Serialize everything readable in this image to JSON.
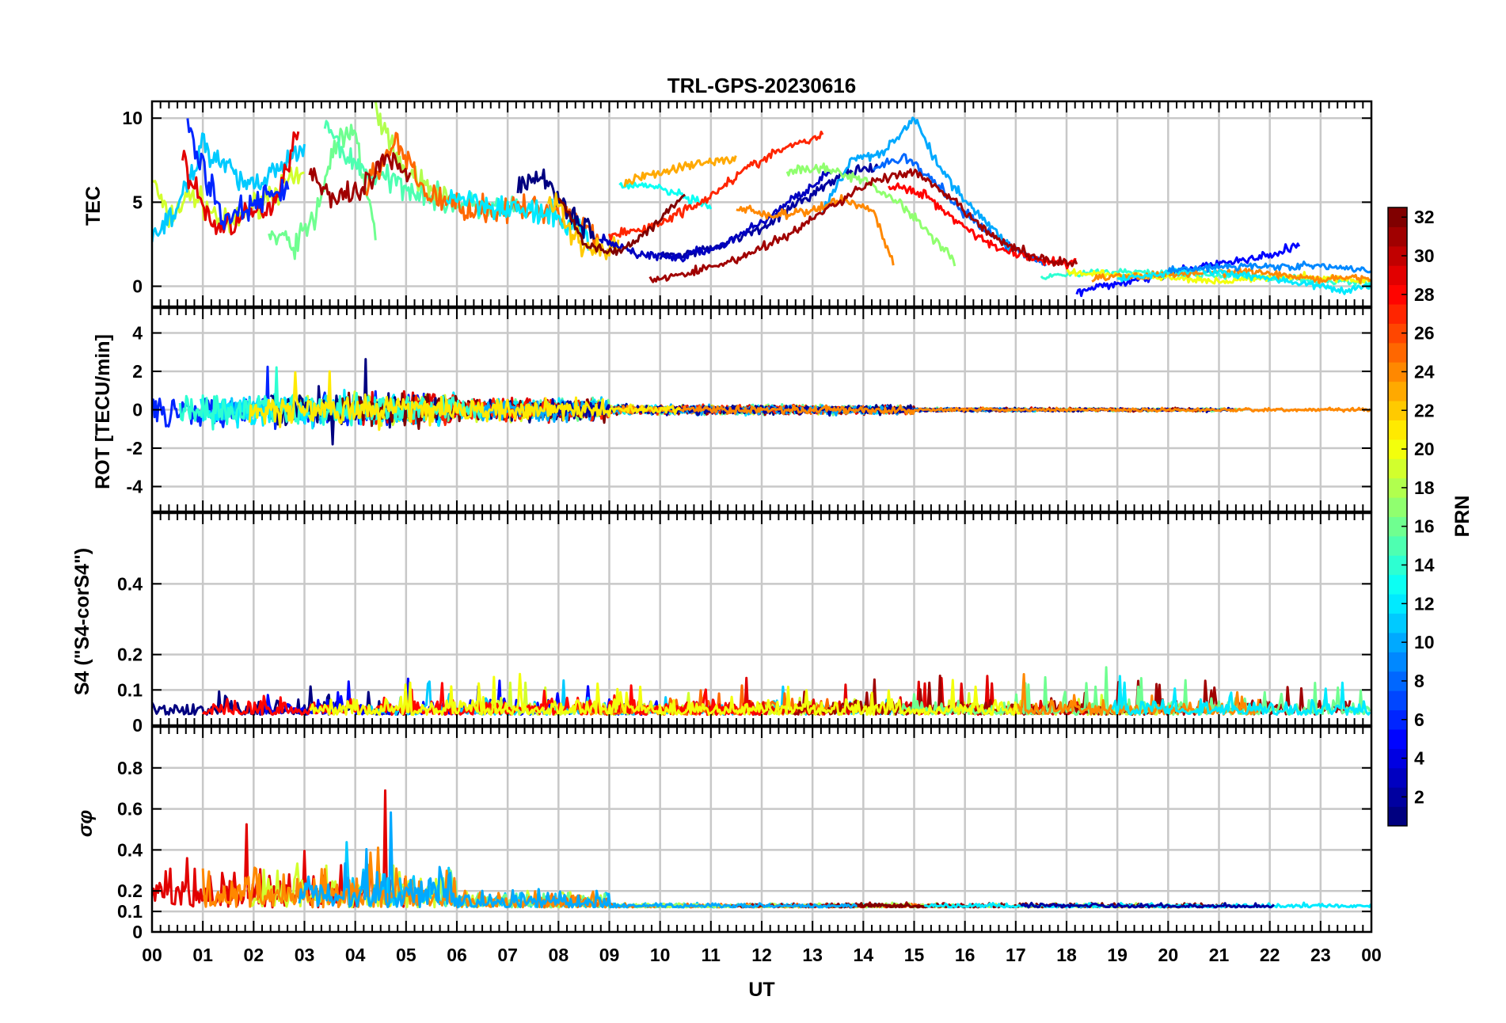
{
  "title": "TRL-GPS-20230616",
  "xlabel": "UT",
  "x_ticks": [
    "00",
    "01",
    "02",
    "03",
    "04",
    "05",
    "06",
    "07",
    "08",
    "09",
    "10",
    "11",
    "12",
    "13",
    "14",
    "15",
    "16",
    "17",
    "18",
    "19",
    "20",
    "21",
    "22",
    "23",
    "00"
  ],
  "colorbar": {
    "label": "PRN",
    "colormap": "jet",
    "range": [
      1,
      32
    ],
    "ticks": [
      "2",
      "4",
      "6",
      "8",
      "10",
      "12",
      "14",
      "16",
      "18",
      "20",
      "22",
      "24",
      "26",
      "28",
      "30",
      "32"
    ]
  },
  "chart_data": [
    {
      "type": "line",
      "panel": "tec",
      "ylabel": "TEC",
      "xlim": [
        0,
        24
      ],
      "ylim": [
        -1.2,
        11
      ],
      "y_ticks": [
        "0",
        "5",
        "10"
      ],
      "grid": true,
      "series": [
        {
          "prn": 2,
          "x": [
            10.0,
            11.0,
            12.0,
            13.0,
            13.7,
            14.3
          ],
          "y": [
            1.8,
            2.2,
            3.5,
            5.5,
            6.8,
            7.0
          ]
        },
        {
          "prn": 3,
          "x": [
            8.8,
            9.6,
            10.4,
            11.2,
            12.1,
            12.8,
            13.4
          ],
          "y": [
            2.8,
            1.9,
            1.7,
            2.4,
            4.0,
            5.6,
            6.9
          ]
        },
        {
          "prn": 5,
          "x": [
            18.2,
            19.2,
            20.4,
            21.2,
            22.0,
            22.6
          ],
          "y": [
            -0.4,
            0.3,
            1.0,
            1.4,
            1.8,
            2.5
          ]
        },
        {
          "prn": 8,
          "x": [
            14.2,
            14.8,
            15.4,
            16.0,
            16.8,
            17.6
          ],
          "y": [
            7.0,
            7.7,
            6.2,
            4.3,
            2.5,
            1.3
          ]
        },
        {
          "prn": 10,
          "x": [
            13.2,
            13.8,
            14.4,
            15.0,
            15.5,
            16.2,
            17.0
          ],
          "y": [
            4.5,
            7.6,
            8.0,
            10.0,
            7.0,
            4.5,
            2.0
          ]
        },
        {
          "prn": 13,
          "x": [
            9.2,
            9.8,
            10.5,
            11.0
          ],
          "y": [
            6.0,
            6.0,
            5.3,
            4.6
          ]
        },
        {
          "prn": 17,
          "x": [
            12.5,
            13.2,
            14.0,
            14.7,
            15.2,
            15.8
          ],
          "y": [
            6.8,
            7.0,
            6.3,
            5.0,
            3.5,
            1.5
          ]
        },
        {
          "prn": 23,
          "x": [
            9.3,
            10.0,
            10.8,
            11.5
          ],
          "y": [
            6.2,
            6.8,
            7.3,
            7.6
          ]
        },
        {
          "prn": 24,
          "x": [
            11.5,
            12.2,
            12.9,
            13.6,
            14.2,
            14.6
          ],
          "y": [
            4.7,
            4.2,
            4.4,
            5.2,
            4.5,
            1.2
          ]
        },
        {
          "prn": 27,
          "x": [
            9.0,
            9.8,
            10.8,
            11.7,
            12.5,
            13.2
          ],
          "y": [
            3.0,
            3.5,
            5.0,
            7.0,
            8.3,
            8.9
          ]
        },
        {
          "prn": 28,
          "x": [
            14.5,
            15.2,
            16.0,
            16.7,
            17.6,
            18.2
          ],
          "y": [
            6.0,
            5.5,
            3.5,
            2.2,
            1.5,
            1.3
          ]
        },
        {
          "prn": 31,
          "x": [
            9.8,
            10.6,
            11.5,
            12.5,
            13.4,
            14.2,
            15.0,
            15.8,
            16.6,
            17.4,
            18.2
          ],
          "y": [
            0.4,
            0.8,
            1.6,
            3.0,
            4.8,
            6.3,
            6.8,
            5.0,
            2.8,
            1.7,
            1.3
          ]
        },
        {
          "prn": 32,
          "x": [
            8.0,
            8.5,
            9.0,
            9.5,
            10.0,
            10.5
          ],
          "y": [
            5.5,
            2.5,
            2.0,
            2.6,
            4.0,
            5.6
          ]
        }
      ]
    },
    {
      "type": "line",
      "panel": "rot",
      "ylabel": "ROT [TECU/min]",
      "xlim": [
        0,
        24
      ],
      "ylim": [
        -5.3,
        5.3
      ],
      "y_ticks": [
        "-4",
        "-2",
        "0",
        "2",
        "4"
      ],
      "grid": true
    },
    {
      "type": "line",
      "panel": "s4",
      "ylabel": "S4 (\"S4-corS4\")",
      "xlim": [
        0,
        24
      ],
      "ylim": [
        0,
        0.6
      ],
      "y_ticks": [
        "0",
        "0.1",
        "0.2",
        "0.4"
      ],
      "grid": true
    },
    {
      "type": "line",
      "panel": "sigma_phi",
      "ylabel": "σφ",
      "xlim": [
        0,
        24
      ],
      "ylim": [
        0,
        1
      ],
      "y_ticks": [
        "0",
        "0.1",
        "0.2",
        "0.4",
        "0.6",
        "0.8"
      ],
      "grid": true
    }
  ]
}
